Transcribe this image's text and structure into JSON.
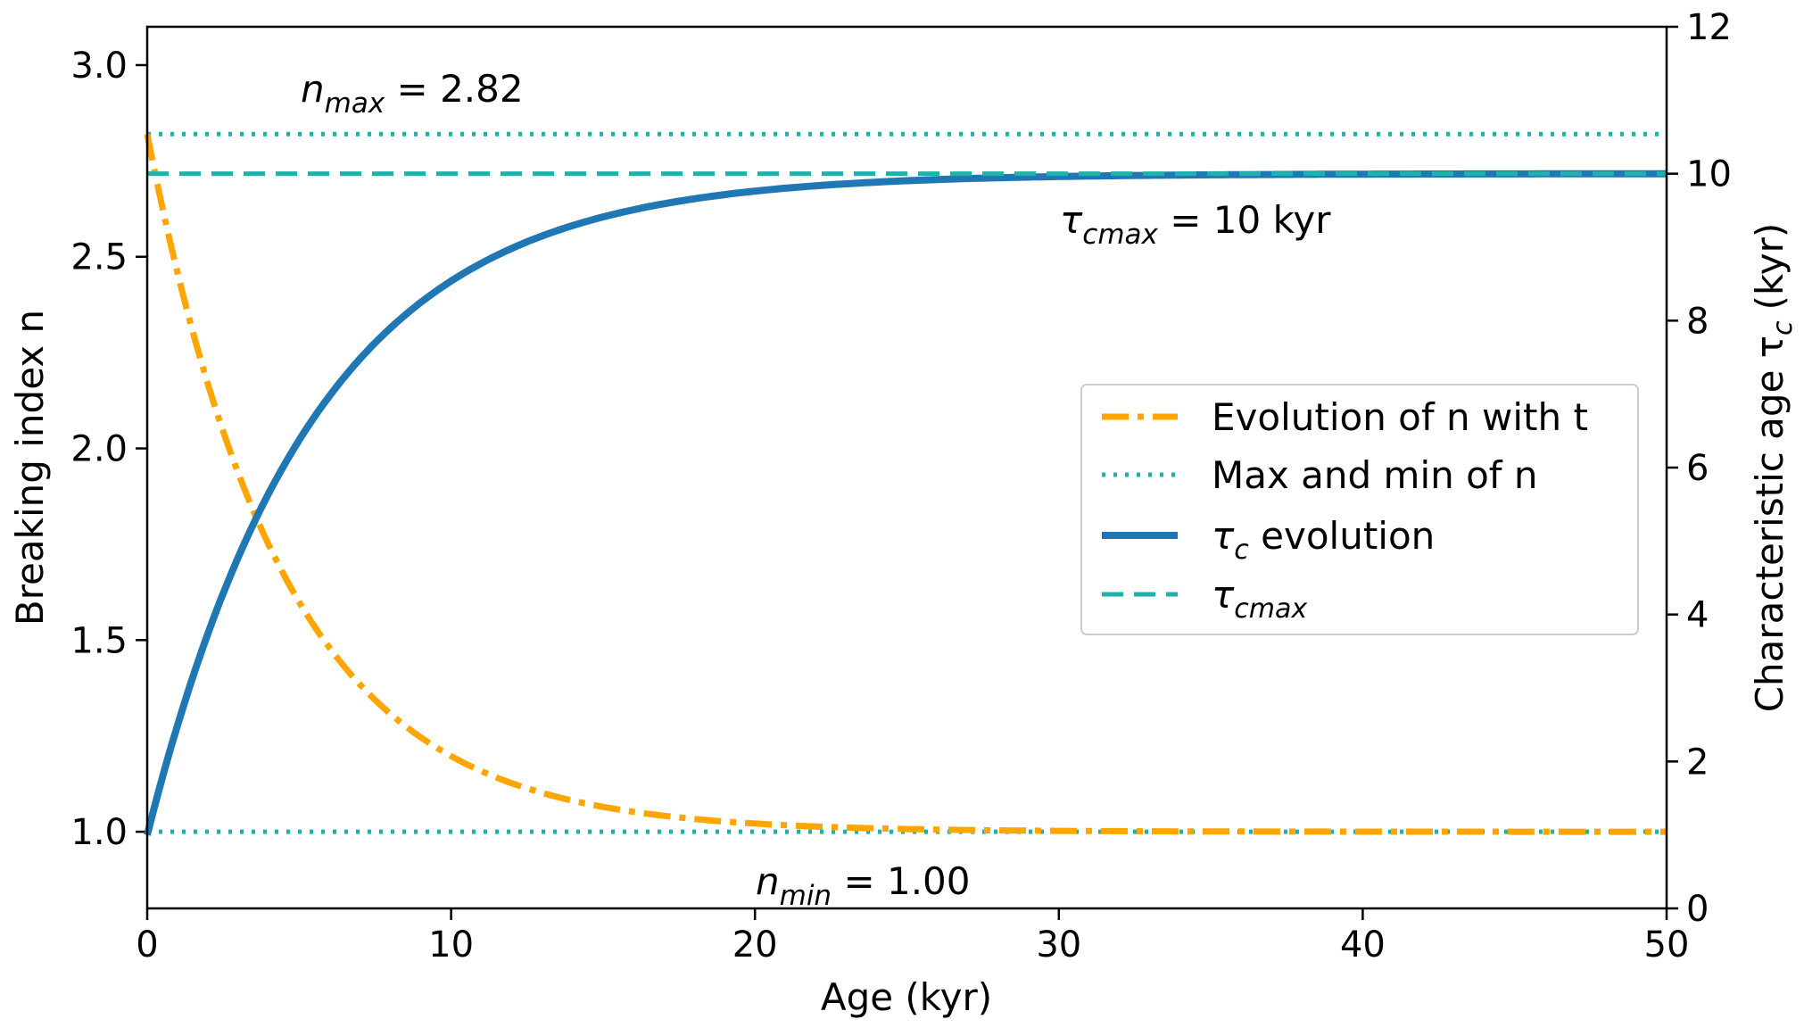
{
  "chart_data": {
    "type": "line",
    "xlabel": "Age (kyr)",
    "ylabel_left": "Breaking index n",
    "ylabel_right": "Characteristic age τ",
    "ylabel_right_sub": "c",
    "ylabel_right_unit": "(kyr)",
    "xlim": [
      0,
      50
    ],
    "ylim_left": [
      0.8,
      3.1
    ],
    "ylim_right": [
      0,
      12
    ],
    "x_ticks": [
      "0",
      "10",
      "20",
      "30",
      "40",
      "50"
    ],
    "left_ticks": [
      "1.0",
      "1.5",
      "2.0",
      "2.5",
      "3.0"
    ],
    "right_ticks": [
      "0",
      "2",
      "4",
      "6",
      "8",
      "10",
      "12"
    ],
    "grid": false,
    "series": [
      {
        "name": "Evolution of n with t",
        "axis": "left",
        "style": "dashdot",
        "color": "#FFA500",
        "model": "n(t) = 1.00 + 1.82·exp(−t/4.5)",
        "x": [
          0,
          1,
          2,
          3,
          4,
          5,
          6,
          7,
          8,
          9,
          10,
          12,
          14,
          16,
          18,
          20,
          25,
          30,
          40,
          50
        ],
        "values": [
          2.82,
          2.49,
          2.17,
          1.93,
          1.71,
          1.57,
          1.46,
          1.36,
          1.28,
          1.23,
          1.19,
          1.12,
          1.08,
          1.05,
          1.03,
          1.02,
          1.01,
          1.0,
          1.0,
          1.0
        ]
      },
      {
        "name": "Max and min of n",
        "axis": "left",
        "style": "dotted",
        "color": "#20B2AA",
        "levels": [
          2.82,
          1.0
        ]
      },
      {
        "name_prefix": "τ",
        "name_sub": "c",
        "name_suffix": " evolution",
        "axis": "right",
        "style": "solid",
        "color": "#1F77B4",
        "model": "τc(t) = 10 − 9·exp(−t/5.5)",
        "x": [
          0,
          1,
          2,
          3,
          4,
          5,
          6,
          7,
          8,
          9,
          10,
          12,
          14,
          16,
          18,
          20,
          25,
          30,
          40,
          50
        ],
        "values": [
          1.0,
          2.5,
          3.7,
          4.8,
          5.6,
          6.3,
          6.9,
          7.4,
          7.9,
          8.2,
          8.5,
          9.0,
          9.3,
          9.5,
          9.7,
          9.8,
          9.9,
          10.0,
          10.0,
          10.0
        ]
      },
      {
        "name_prefix": "τ",
        "name_sub": "cmax",
        "axis": "right",
        "style": "dashed",
        "color": "#20B2AA",
        "level": 10
      }
    ],
    "annotations": {
      "nmax": {
        "sym": "n",
        "sub": "max",
        "text": " = 2.82"
      },
      "nmin": {
        "sym": "n",
        "sub": "min",
        "text": " = 1.00"
      },
      "tau_cmax": {
        "sym": "τ",
        "sub": "cmax",
        "text": " = 10 kyr"
      }
    },
    "legend_placement": "center-right"
  }
}
